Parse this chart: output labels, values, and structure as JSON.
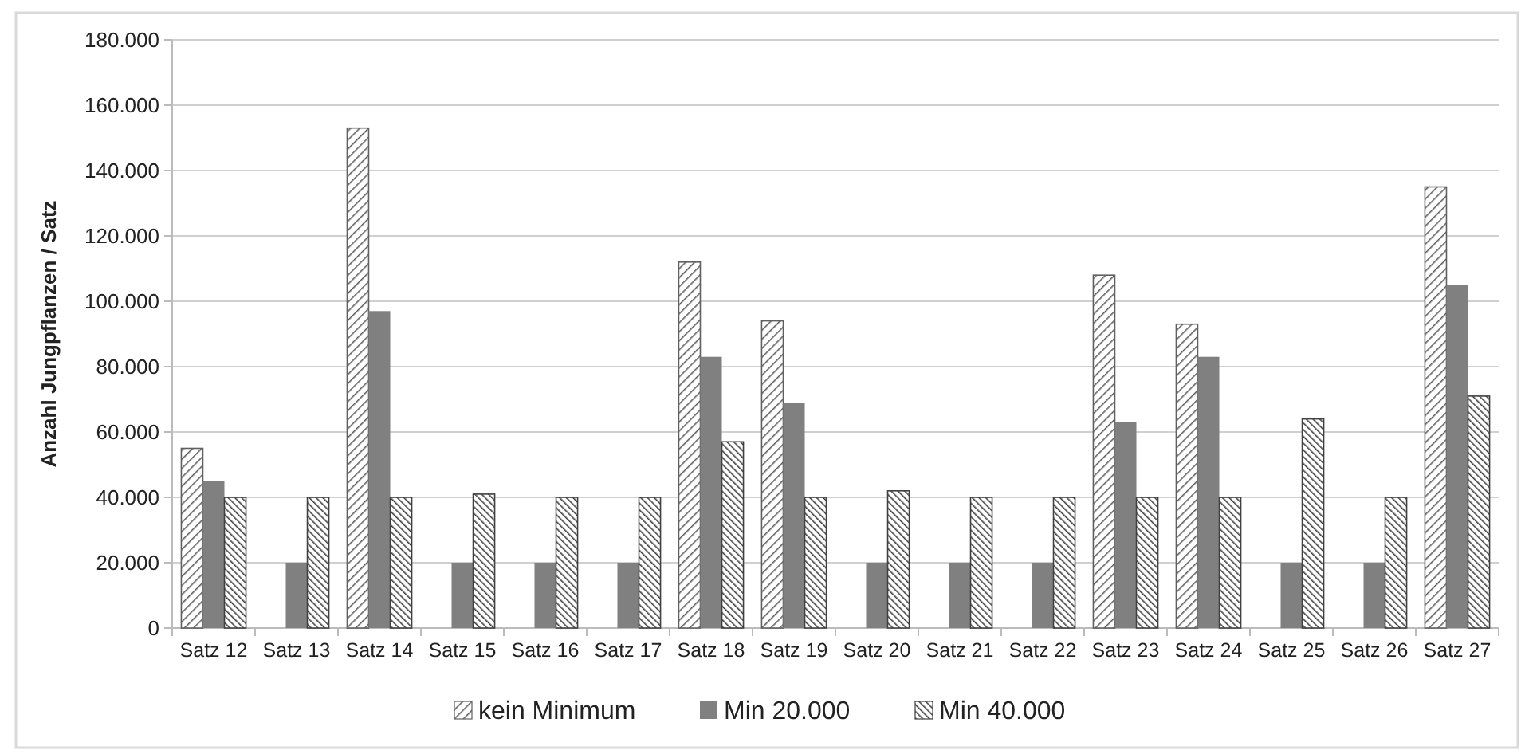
{
  "chart_data": {
    "type": "bar",
    "ylabel": "Anzahl Jungpflanzen / Satz",
    "categories": [
      "Satz 12",
      "Satz 13",
      "Satz 14",
      "Satz 15",
      "Satz 16",
      "Satz 17",
      "Satz 18",
      "Satz 19",
      "Satz 20",
      "Satz 21",
      "Satz 22",
      "Satz 23",
      "Satz 24",
      "Satz 25",
      "Satz 26",
      "Satz 27"
    ],
    "series": [
      {
        "name": "kein Minimum",
        "color": "#606060",
        "values": [
          55000,
          0,
          153000,
          0,
          0,
          0,
          112000,
          94000,
          0,
          0,
          0,
          108000,
          93000,
          0,
          0,
          135000
        ]
      },
      {
        "name": "Min 20.000",
        "color": "#808080",
        "values": [
          45000,
          20000,
          97000,
          20000,
          20000,
          20000,
          83000,
          69000,
          20000,
          20000,
          20000,
          63000,
          83000,
          20000,
          20000,
          105000
        ]
      },
      {
        "name": "Min 40.000",
        "color": "#404040",
        "values": [
          40000,
          40000,
          40000,
          41000,
          40000,
          40000,
          57000,
          40000,
          42000,
          40000,
          40000,
          40000,
          40000,
          64000,
          40000,
          71000
        ]
      }
    ],
    "ylim": [
      0,
      180000
    ],
    "yticks": [
      {
        "value": 0,
        "label": "0"
      },
      {
        "value": 20000,
        "label": "20.000"
      },
      {
        "value": 40000,
        "label": "40.000"
      },
      {
        "value": 60000,
        "label": "60.000"
      },
      {
        "value": 80000,
        "label": "80.000"
      },
      {
        "value": 100000,
        "label": "100.000"
      },
      {
        "value": 120000,
        "label": "120.000"
      },
      {
        "value": 140000,
        "label": "140.000"
      },
      {
        "value": 160000,
        "label": "160.000"
      },
      {
        "value": 180000,
        "label": "180.000"
      }
    ],
    "grid": "y",
    "legend": "bottom"
  }
}
